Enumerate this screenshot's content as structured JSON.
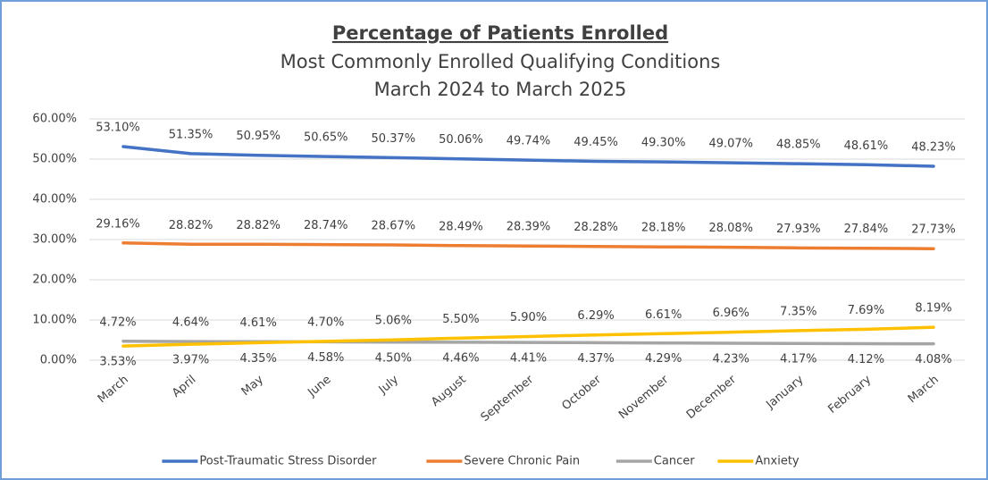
{
  "chart_data": {
    "type": "line",
    "title": "Percentage of Patients Enrolled",
    "subtitle": [
      "Most Commonly Enrolled Qualifying Conditions",
      "March 2024 to March 2025"
    ],
    "categories": [
      "March",
      "April",
      "May",
      "June",
      "July",
      "August",
      "September",
      "October",
      "November",
      "December",
      "January",
      "February",
      "March"
    ],
    "series": [
      {
        "name": "Post-Traumatic Stress Disorder",
        "color": "#4472c4",
        "values": [
          53.1,
          51.35,
          50.95,
          50.65,
          50.37,
          50.06,
          49.74,
          49.45,
          49.3,
          49.07,
          48.85,
          48.61,
          48.23
        ],
        "value_labels": [
          "53.10%",
          "51.35%",
          "50.95%",
          "50.65%",
          "50.37%",
          "50.06%",
          "49.74%",
          "49.45%",
          "49.30%",
          "49.07%",
          "48.85%",
          "48.61%",
          "48.23%"
        ]
      },
      {
        "name": "Severe Chronic Pain",
        "color": "#ed7d31",
        "values": [
          29.16,
          28.82,
          28.82,
          28.74,
          28.67,
          28.49,
          28.39,
          28.28,
          28.18,
          28.08,
          27.93,
          27.84,
          27.73
        ],
        "value_labels": [
          "29.16%",
          "28.82%",
          "28.82%",
          "28.74%",
          "28.67%",
          "28.49%",
          "28.39%",
          "28.28%",
          "28.18%",
          "28.08%",
          "27.93%",
          "27.84%",
          "27.73%"
        ]
      },
      {
        "name": "Cancer",
        "color": "#a5a5a5",
        "values": [
          4.72,
          4.64,
          4.61,
          4.58,
          4.5,
          4.46,
          4.41,
          4.37,
          4.29,
          4.23,
          4.17,
          4.12,
          4.08
        ],
        "value_labels": [
          "4.72%",
          "4.64%",
          "4.61%",
          "4.58%",
          "4.50%",
          "4.46%",
          "4.41%",
          "4.37%",
          "4.29%",
          "4.23%",
          "4.17%",
          "4.12%",
          "4.08%"
        ]
      },
      {
        "name": "Anxiety",
        "color": "#ffc000",
        "values": [
          3.53,
          3.97,
          4.35,
          4.7,
          5.06,
          5.5,
          5.9,
          6.29,
          6.61,
          6.96,
          7.35,
          7.69,
          8.19
        ],
        "value_labels": [
          "3.53%",
          "3.97%",
          "4.35%",
          "4.70%",
          "5.06%",
          "5.50%",
          "5.90%",
          "6.29%",
          "6.61%",
          "6.96%",
          "7.35%",
          "7.69%",
          "8.19%"
        ]
      }
    ],
    "ylim": [
      0,
      60
    ],
    "yticks": [
      {
        "value": 0,
        "label": "0.00%"
      },
      {
        "value": 10,
        "label": "10.00%"
      },
      {
        "value": 20,
        "label": "20.00%"
      },
      {
        "value": 30,
        "label": "30.00%"
      },
      {
        "value": 40,
        "label": "40.00%"
      },
      {
        "value": 50,
        "label": "50.00%"
      },
      {
        "value": 60,
        "label": "60.00%"
      }
    ],
    "grid": true,
    "legend": "bottom"
  }
}
